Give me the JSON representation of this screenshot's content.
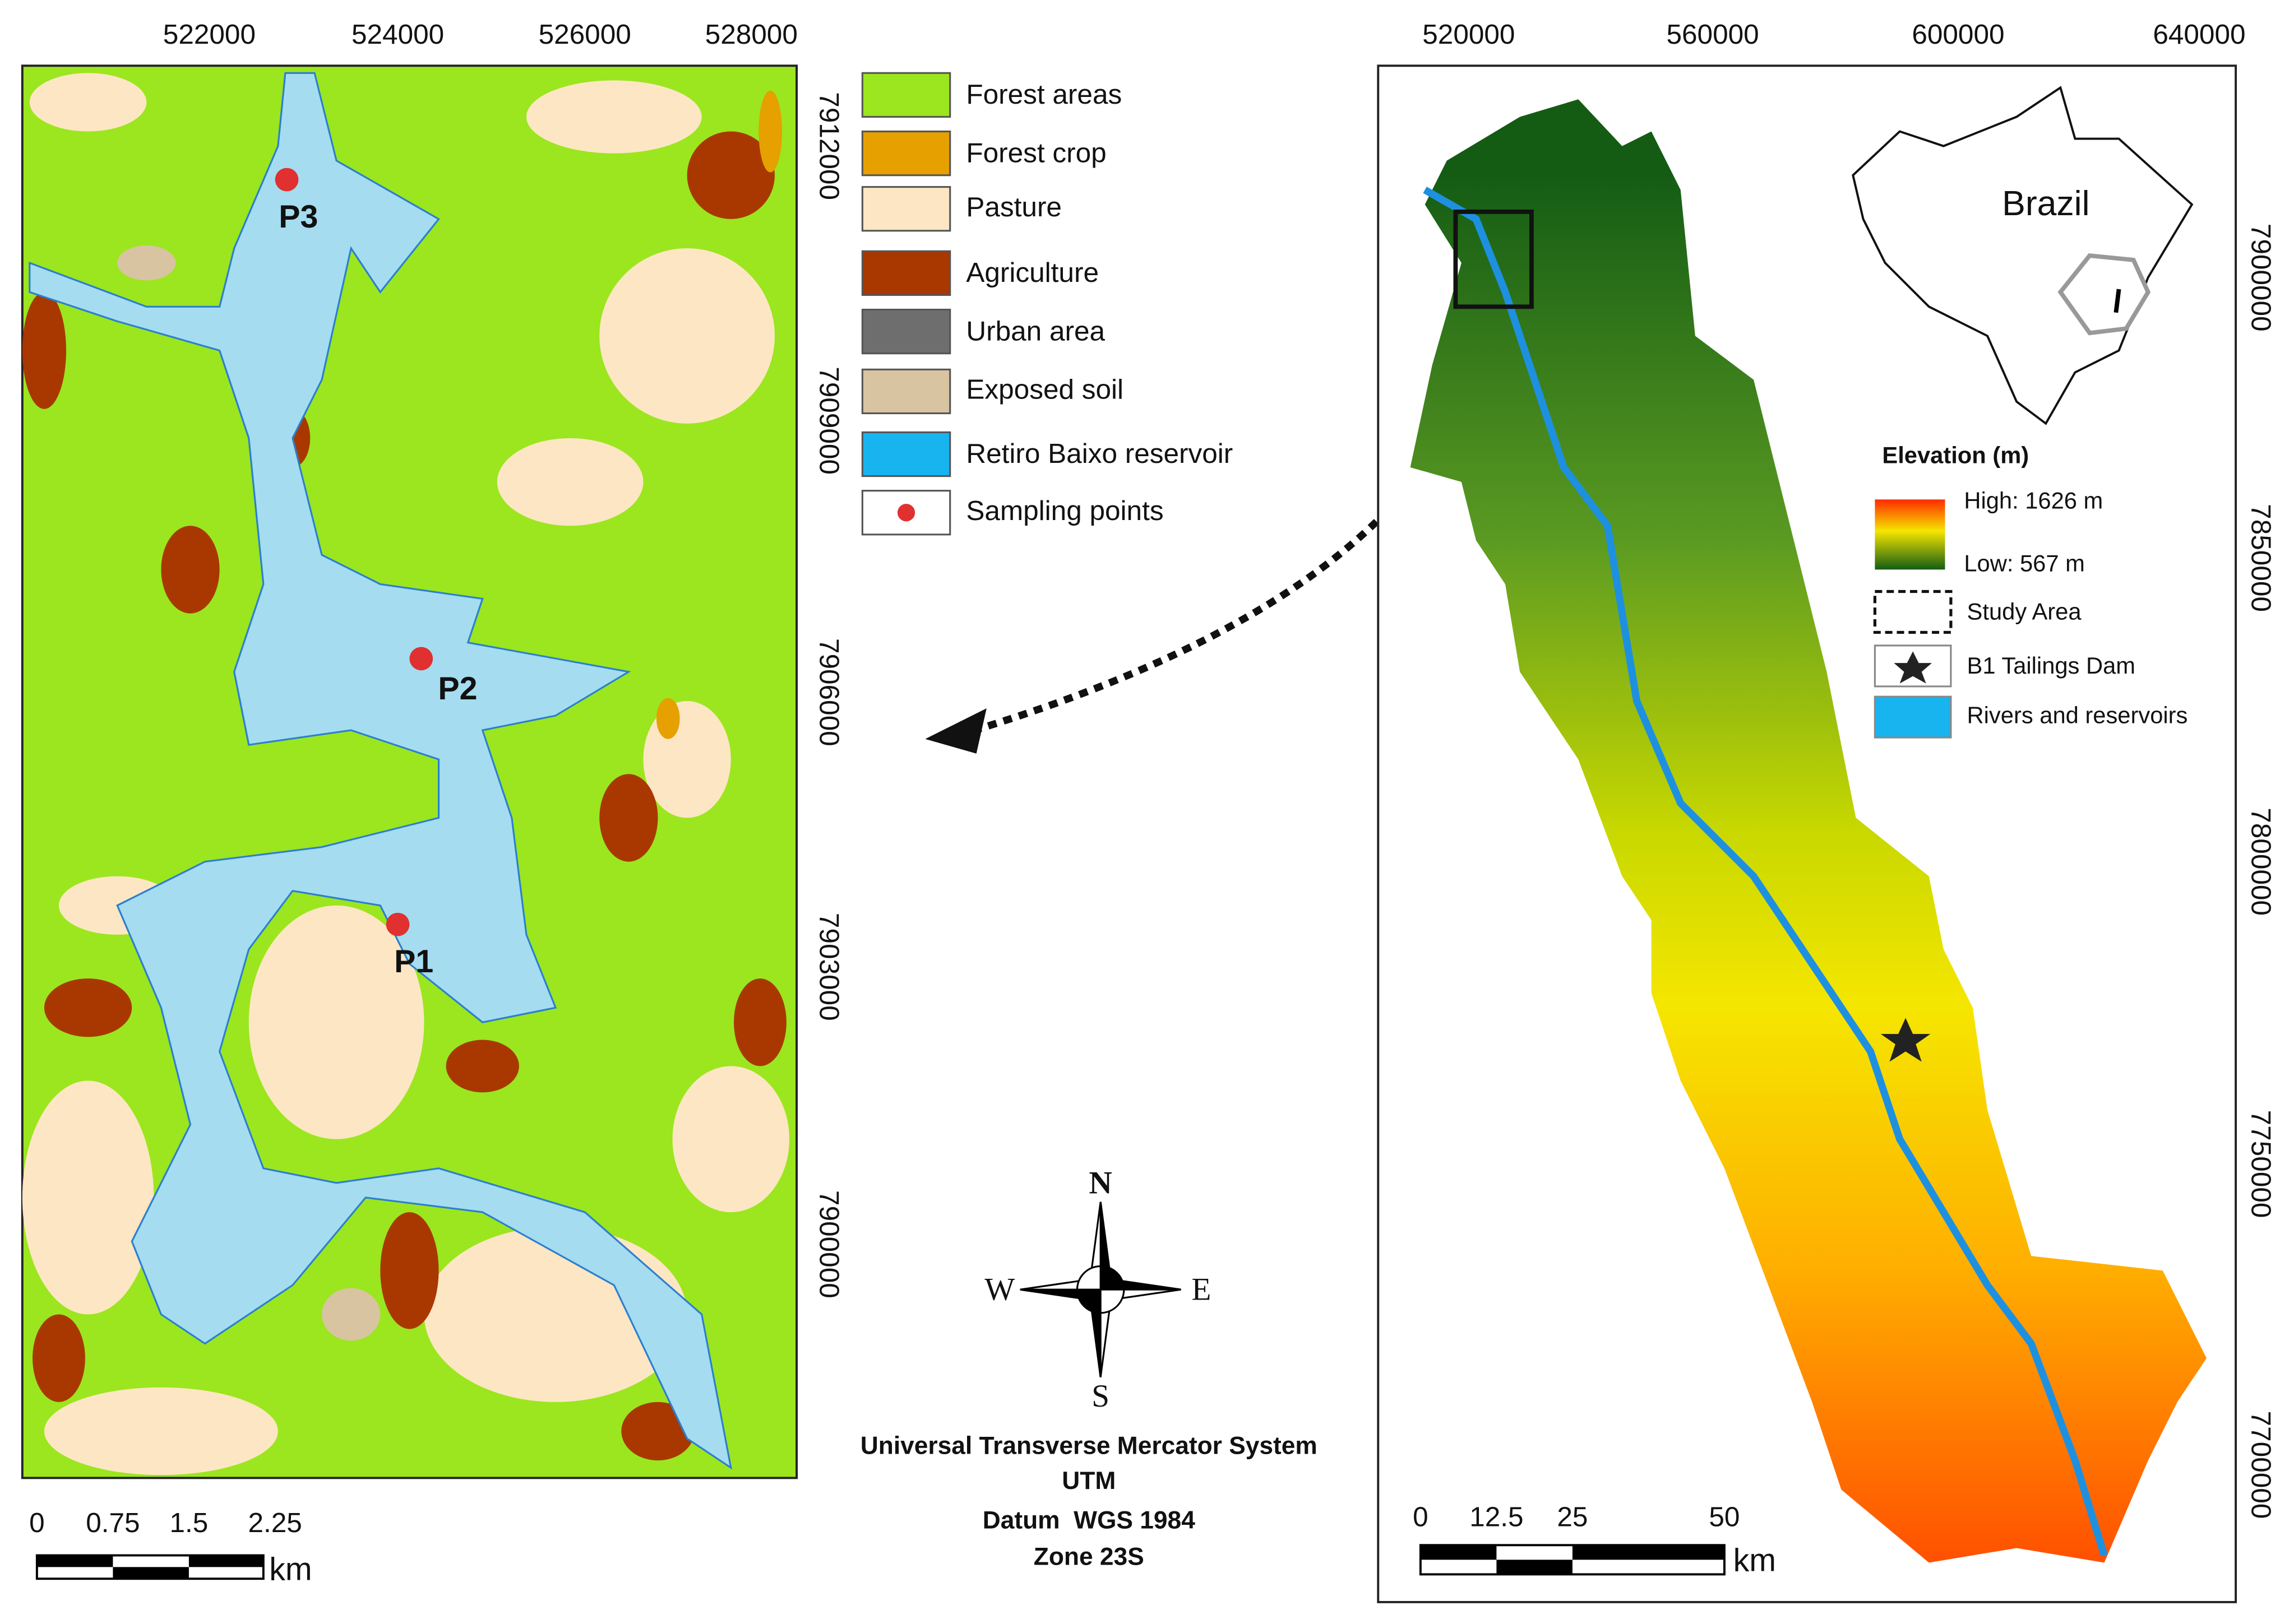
{
  "left_map": {
    "x_ticks": [
      "522000",
      "524000",
      "526000",
      "528000"
    ],
    "y_ticks": [
      "7912000",
      "7909000",
      "7906000",
      "7903000",
      "7900000"
    ],
    "points": [
      "P3",
      "P2",
      "P1"
    ],
    "scale": {
      "labels": [
        "0",
        "0.75",
        "1.5",
        "2.25"
      ],
      "unit": "km"
    }
  },
  "legend": {
    "items": [
      "Forest areas",
      "Forest crop",
      "Pasture",
      "Agriculture",
      "Urban area",
      "Exposed soil",
      "Retiro Baixo reservoir",
      "Sampling points"
    ]
  },
  "compass": {
    "n": "N",
    "s": "S",
    "e": "E",
    "w": "W"
  },
  "projection": [
    "Universal Transverse Mercator System",
    "UTM",
    "Datum  WGS 1984",
    "Zone 23S"
  ],
  "right_map": {
    "x_ticks": [
      "520000",
      "560000",
      "600000",
      "640000"
    ],
    "y_ticks": [
      "7900000",
      "7850000",
      "7800000",
      "7750000",
      "7700000"
    ],
    "inset_label": "Brazil",
    "legend": {
      "title": "Elevation (m)",
      "high": "High: 1626 m",
      "low": "Low: 567 m",
      "items": [
        "Study Area",
        "B1 Tailings Dam",
        "Rivers and reservoirs"
      ]
    },
    "scale": {
      "labels": [
        "0",
        "12.5",
        "25",
        "50"
      ],
      "unit": "km"
    }
  }
}
